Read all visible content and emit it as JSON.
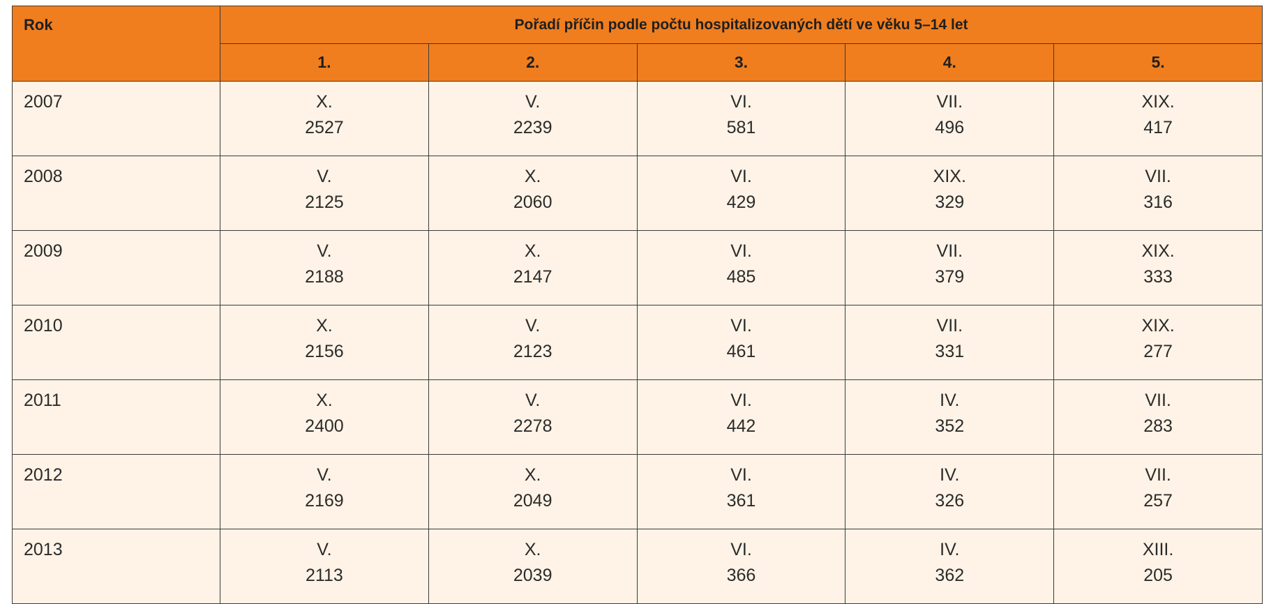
{
  "table": {
    "year_header": "Rok",
    "group_header": "Pořadí příčin podle počtu hospitalizovaných dětí ve věku 5–14 let",
    "rank_headers": [
      "1.",
      "2.",
      "3.",
      "4.",
      "5."
    ],
    "rows": [
      {
        "year": "2007",
        "cells": [
          {
            "cause": "X.",
            "count": "2527"
          },
          {
            "cause": "V.",
            "count": "2239"
          },
          {
            "cause": "VI.",
            "count": "581"
          },
          {
            "cause": "VII.",
            "count": "496"
          },
          {
            "cause": "XIX.",
            "count": "417"
          }
        ]
      },
      {
        "year": "2008",
        "cells": [
          {
            "cause": "V.",
            "count": "2125"
          },
          {
            "cause": "X.",
            "count": "2060"
          },
          {
            "cause": "VI.",
            "count": "429"
          },
          {
            "cause": "XIX.",
            "count": "329"
          },
          {
            "cause": "VII.",
            "count": "316"
          }
        ]
      },
      {
        "year": "2009",
        "cells": [
          {
            "cause": "V.",
            "count": "2188"
          },
          {
            "cause": "X.",
            "count": "2147"
          },
          {
            "cause": "VI.",
            "count": "485"
          },
          {
            "cause": "VII.",
            "count": "379"
          },
          {
            "cause": "XIX.",
            "count": "333"
          }
        ]
      },
      {
        "year": "2010",
        "cells": [
          {
            "cause": "X.",
            "count": "2156"
          },
          {
            "cause": "V.",
            "count": "2123"
          },
          {
            "cause": "VI.",
            "count": "461"
          },
          {
            "cause": "VII.",
            "count": "331"
          },
          {
            "cause": "XIX.",
            "count": "277"
          }
        ]
      },
      {
        "year": "2011",
        "cells": [
          {
            "cause": "X.",
            "count": "2400"
          },
          {
            "cause": "V.",
            "count": "2278"
          },
          {
            "cause": "VI.",
            "count": "442"
          },
          {
            "cause": "IV.",
            "count": "352"
          },
          {
            "cause": "VII.",
            "count": "283"
          }
        ]
      },
      {
        "year": "2012",
        "cells": [
          {
            "cause": "V.",
            "count": "2169"
          },
          {
            "cause": "X.",
            "count": "2049"
          },
          {
            "cause": "VI.",
            "count": "361"
          },
          {
            "cause": "IV.",
            "count": "326"
          },
          {
            "cause": "VII.",
            "count": "257"
          }
        ]
      },
      {
        "year": "2013",
        "cells": [
          {
            "cause": "V.",
            "count": "2113"
          },
          {
            "cause": "X.",
            "count": "2039"
          },
          {
            "cause": "VI.",
            "count": "366"
          },
          {
            "cause": "IV.",
            "count": "362"
          },
          {
            "cause": "XIII.",
            "count": "205"
          }
        ]
      }
    ]
  },
  "colors": {
    "header_background": "#f07e1e",
    "body_background": "#fef3e6",
    "border": "#3a3a3a"
  }
}
